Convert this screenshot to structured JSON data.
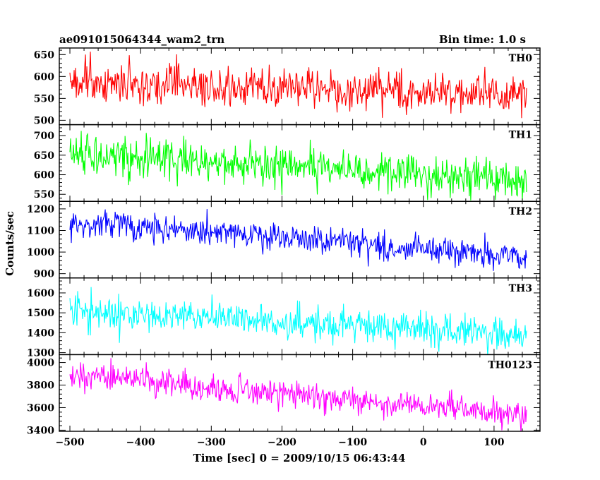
{
  "chart_data": {
    "type": "line",
    "title": "ae091015064344_wam2_trn",
    "subtitle": "Bin time: 1.0 s",
    "xlabel": "Time [sec] 0 = 2009/10/15 06:43:44",
    "ylabel": "Counts/sec",
    "xlim": [
      -515,
      165
    ],
    "x_ticks": [
      -500,
      -400,
      -300,
      -200,
      -100,
      0,
      100
    ],
    "x_tick_labels": [
      "−500",
      "−400",
      "−300",
      "−200",
      "−100",
      "0",
      "100"
    ],
    "data_x_range": [
      -500,
      146
    ],
    "bin_time_s": 1.0,
    "grid": false,
    "panels": [
      {
        "name": "TH0",
        "color": "#ff0000",
        "ylim": [
          490,
          665
        ],
        "y_ticks": [
          500,
          550,
          600,
          650
        ],
        "y_tick_labels": [
          "500",
          "550",
          "600",
          "650"
        ],
        "trend": [
          [
            -500,
            585
          ],
          [
            146,
            560
          ]
        ],
        "noise_sd": 22
      },
      {
        "name": "TH1",
        "color": "#00ff00",
        "ylim": [
          532,
          728
        ],
        "y_ticks": [
          550,
          600,
          650,
          700
        ],
        "y_tick_labels": [
          "550",
          "600",
          "650",
          "700"
        ],
        "trend": [
          [
            -500,
            655
          ],
          [
            146,
            585
          ]
        ],
        "noise_sd": 24
      },
      {
        "name": "TH2",
        "color": "#0000ff",
        "ylim": [
          880,
          1235
        ],
        "y_ticks": [
          900,
          1000,
          1100,
          1200
        ],
        "y_tick_labels": [
          "900",
          "1000",
          "1100",
          "1200"
        ],
        "trend": [
          [
            -500,
            1145
          ],
          [
            146,
            980
          ]
        ],
        "noise_sd": 33
      },
      {
        "name": "TH3",
        "color": "#00ffff",
        "ylim": [
          1290,
          1675
        ],
        "y_ticks": [
          1300,
          1400,
          1500,
          1600
        ],
        "y_tick_labels": [
          "1300",
          "1400",
          "1500",
          "1600"
        ],
        "trend": [
          [
            -500,
            1510
          ],
          [
            146,
            1390
          ]
        ],
        "noise_sd": 42
      },
      {
        "name": "TH0123",
        "color": "#ff00ff",
        "ylim": [
          3390,
          4070
        ],
        "y_ticks": [
          3400,
          3600,
          3800,
          4000
        ],
        "y_tick_labels": [
          "3400",
          "3600",
          "3800",
          "4000"
        ],
        "trend": [
          [
            -500,
            3900
          ],
          [
            146,
            3520
          ]
        ],
        "noise_sd": 62
      }
    ]
  }
}
